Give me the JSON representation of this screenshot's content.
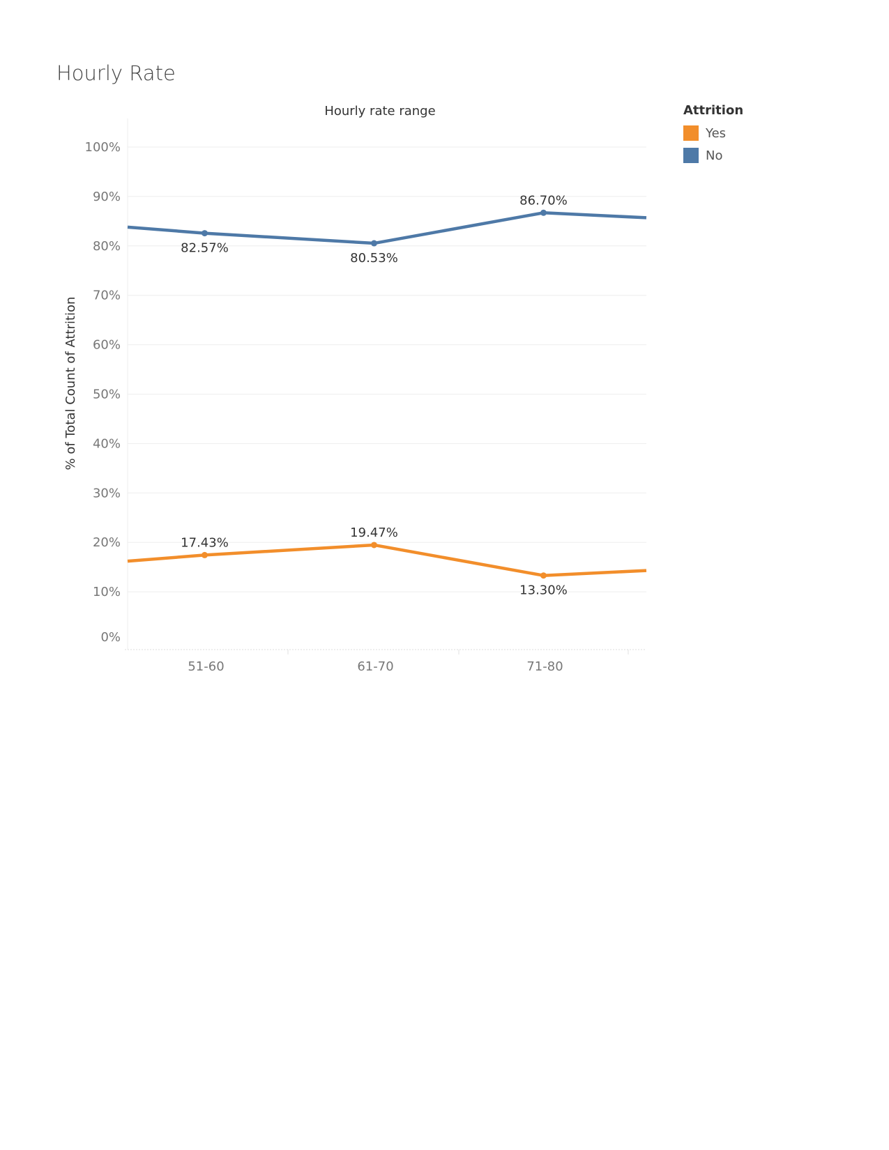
{
  "page_title": "Hourly Rate",
  "chart_data": {
    "type": "line",
    "title": "Hourly rate range",
    "xlabel": "",
    "ylabel": "% of Total Count of Attrition",
    "categories": [
      "51-60",
      "61-70",
      "71-80"
    ],
    "ylim": [
      0,
      100
    ],
    "yticks": [
      "0%",
      "10%",
      "20%",
      "30%",
      "40%",
      "50%",
      "60%",
      "70%",
      "80%",
      "90%",
      "100%"
    ],
    "grid": true,
    "legend": {
      "title": "Attrition",
      "placement": "right",
      "entries": [
        {
          "label": "Yes",
          "color": "#F28E2B"
        },
        {
          "label": "No",
          "color": "#4E79A7"
        }
      ]
    },
    "series": [
      {
        "name": "Yes",
        "color": "#F28E2B",
        "values": [
          17.43,
          19.47,
          13.3
        ],
        "labels": [
          "17.43%",
          "19.47%",
          "13.30%"
        ],
        "label_side": [
          "above",
          "above",
          "below"
        ],
        "lead_in": 16.2,
        "lead_out": 14.3
      },
      {
        "name": "No",
        "color": "#4E79A7",
        "values": [
          82.57,
          80.53,
          86.7
        ],
        "labels": [
          "82.57%",
          "80.53%",
          "86.70%"
        ],
        "label_side": [
          "below",
          "below",
          "above"
        ],
        "lead_in": 83.8,
        "lead_out": 85.7
      }
    ]
  }
}
